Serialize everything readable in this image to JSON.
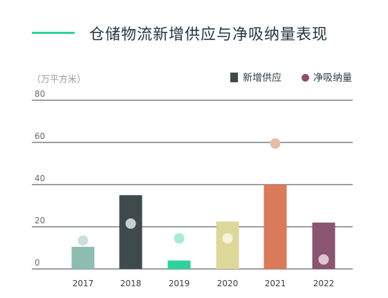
{
  "chart_data": {
    "type": "bar",
    "title": "仓储物流新增供应与净吸纳量表现",
    "unit_label": "（万平方米）",
    "categories": [
      "2017",
      "2018",
      "2019",
      "2020",
      "2021",
      "2022"
    ],
    "ylim": [
      0,
      80
    ],
    "yticks": [
      0,
      20,
      40,
      60,
      80
    ],
    "grid": true,
    "legend_position": "top-right",
    "series": [
      {
        "name": "新增供应",
        "kind": "bar",
        "values": [
          10.5,
          35,
          4,
          22.5,
          40,
          22
        ],
        "colors": [
          "#8fbcb0",
          "#3e4a4c",
          "#2ed39a",
          "#ddd79a",
          "#d97a5a",
          "#8a5570"
        ]
      },
      {
        "name": "净吸纳量",
        "kind": "dot",
        "values": [
          13.5,
          21.5,
          14.5,
          14.5,
          59.5,
          4.5
        ],
        "colors": [
          "#ccdfdb",
          "#c8cfd1",
          "#a7eccf",
          "#f6f3da",
          "#e6bda8",
          "#dcc6d3"
        ]
      }
    ],
    "legend": {
      "bar_label": "新增供应",
      "dot_label": "净吸纳量",
      "bar_color": "#3f4a4c",
      "dot_color": "#8a4e71"
    },
    "accent_color": "#2ed39a"
  }
}
